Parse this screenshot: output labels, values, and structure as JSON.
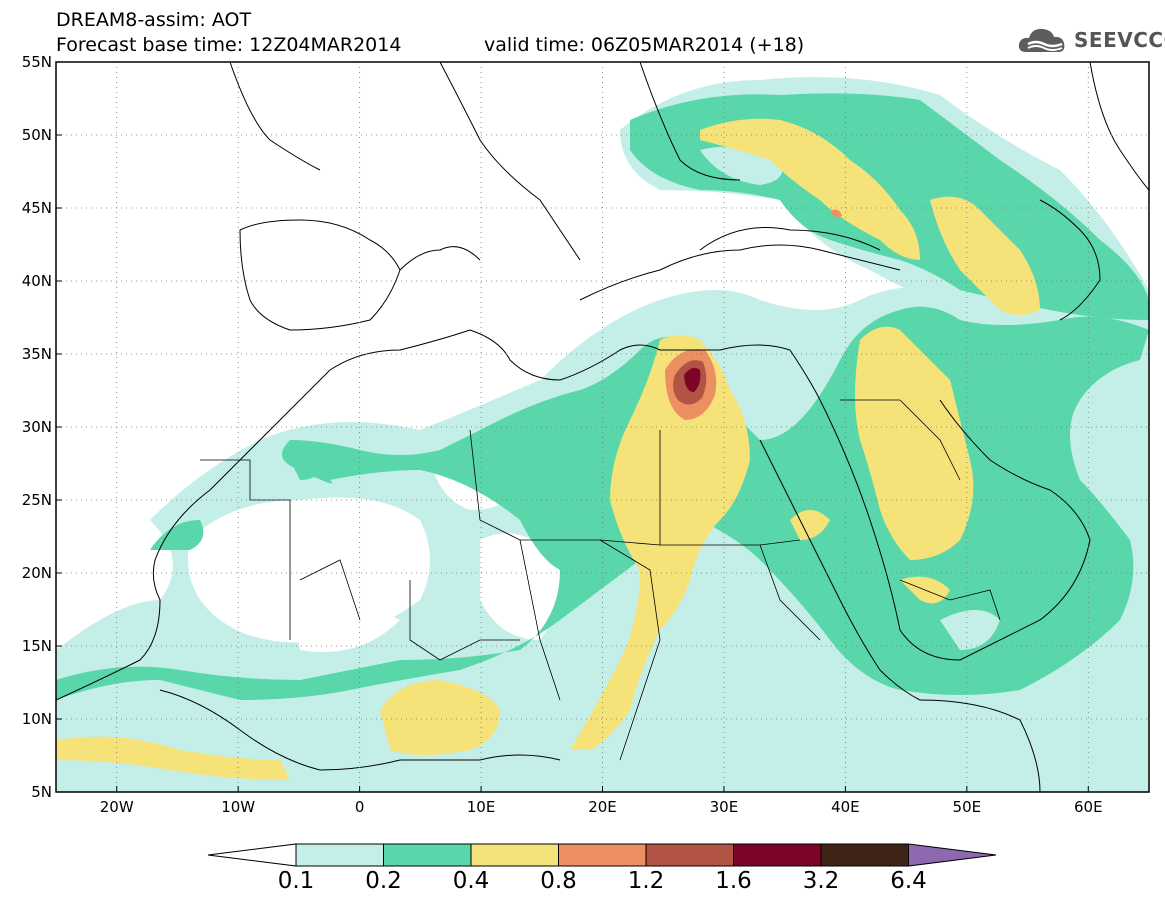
{
  "header": {
    "title": "DREAM8-assim: AOT",
    "base_time": "Forecast base time: 12Z04MAR2014",
    "valid_time": "valid time: 06Z05MAR2014 (+18)",
    "logo_text": "SEEVCCC"
  },
  "map": {
    "lon_range": [
      -25,
      65
    ],
    "lat_range": [
      5,
      55
    ],
    "lat_labels": [
      "55N",
      "50N",
      "45N",
      "40N",
      "35N",
      "30N",
      "25N",
      "20N",
      "15N",
      "10N",
      "5N"
    ],
    "lon_labels": [
      "20W",
      "10W",
      "0",
      "10E",
      "20E",
      "30E",
      "40E",
      "50E",
      "60E"
    ],
    "grid": "dotted"
  },
  "colorbar": {
    "levels": [
      "0.1",
      "0.2",
      "0.4",
      "0.8",
      "1.2",
      "1.6",
      "3.2",
      "6.4"
    ],
    "colors": [
      "#ffffff",
      "#c4efe8",
      "#5ad7aa",
      "#f5e37a",
      "#ec9062",
      "#b25444",
      "#7c0427",
      "#3d2416",
      "#8d6ab0"
    ]
  },
  "colors": {
    "aot_01_02": "#c4efe8",
    "aot_02_04": "#5ad7aa",
    "aot_04_08": "#f5e37a",
    "aot_08_12": "#ec9062",
    "aot_12_16": "#b25444",
    "aot_16_32": "#7c0427",
    "land_lines": "#000000"
  }
}
